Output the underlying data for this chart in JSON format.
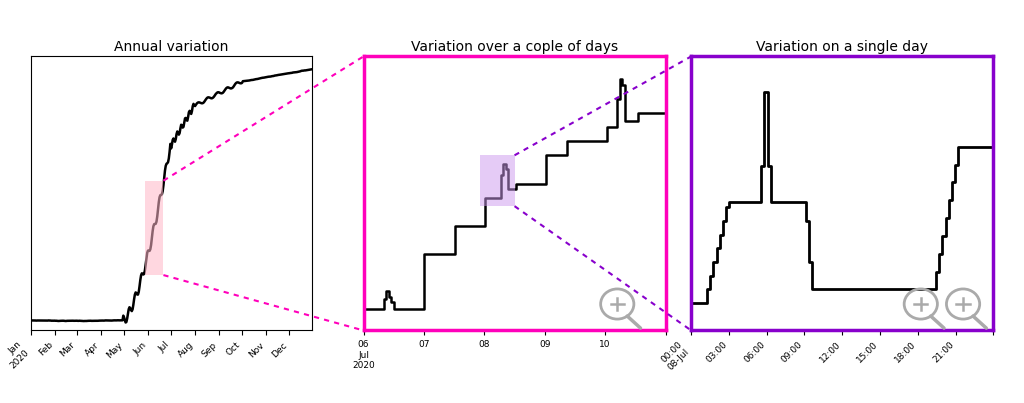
{
  "title1": "Annual variation",
  "title2": "Variation over a cople of days",
  "title3": "Variation on a single day",
  "fig_bg": "#ffffff",
  "line_color": "black",
  "ax2_border_color": "#ff00bb",
  "ax3_border_color": "#8800cc",
  "connector1_color": "#ff00bb",
  "connector2_color": "#8800cc",
  "highlight1_facecolor": "#ffb6c8",
  "highlight1_alpha": 0.55,
  "highlight2_facecolor": "#cc99ee",
  "highlight2_alpha": 0.5,
  "icon_color": "#aaaaaa",
  "month_ticks": [
    0,
    31,
    60,
    91,
    121,
    152,
    182,
    213,
    244,
    274,
    305,
    335
  ],
  "month_labels": [
    "Jan\n2020",
    "Feb",
    "Mar",
    "Apr",
    "May",
    "Jun",
    "Jul",
    "Aug",
    "Sep",
    "Oct",
    "Nov",
    "Dec"
  ],
  "day_ticks": [
    0,
    1,
    2,
    3,
    4,
    5
  ],
  "day_labels": [
    "06\nJul\n2020",
    "07",
    "08",
    "09",
    "10",
    ""
  ],
  "hour_ticks": [
    0,
    3,
    6,
    9,
    12,
    15,
    18,
    21,
    24
  ],
  "hour_labels": [
    "00:00\n08-Jul",
    "03:00",
    "06:00",
    "09:00",
    "12:00",
    "15:00",
    "18:00",
    "21:00",
    ""
  ]
}
